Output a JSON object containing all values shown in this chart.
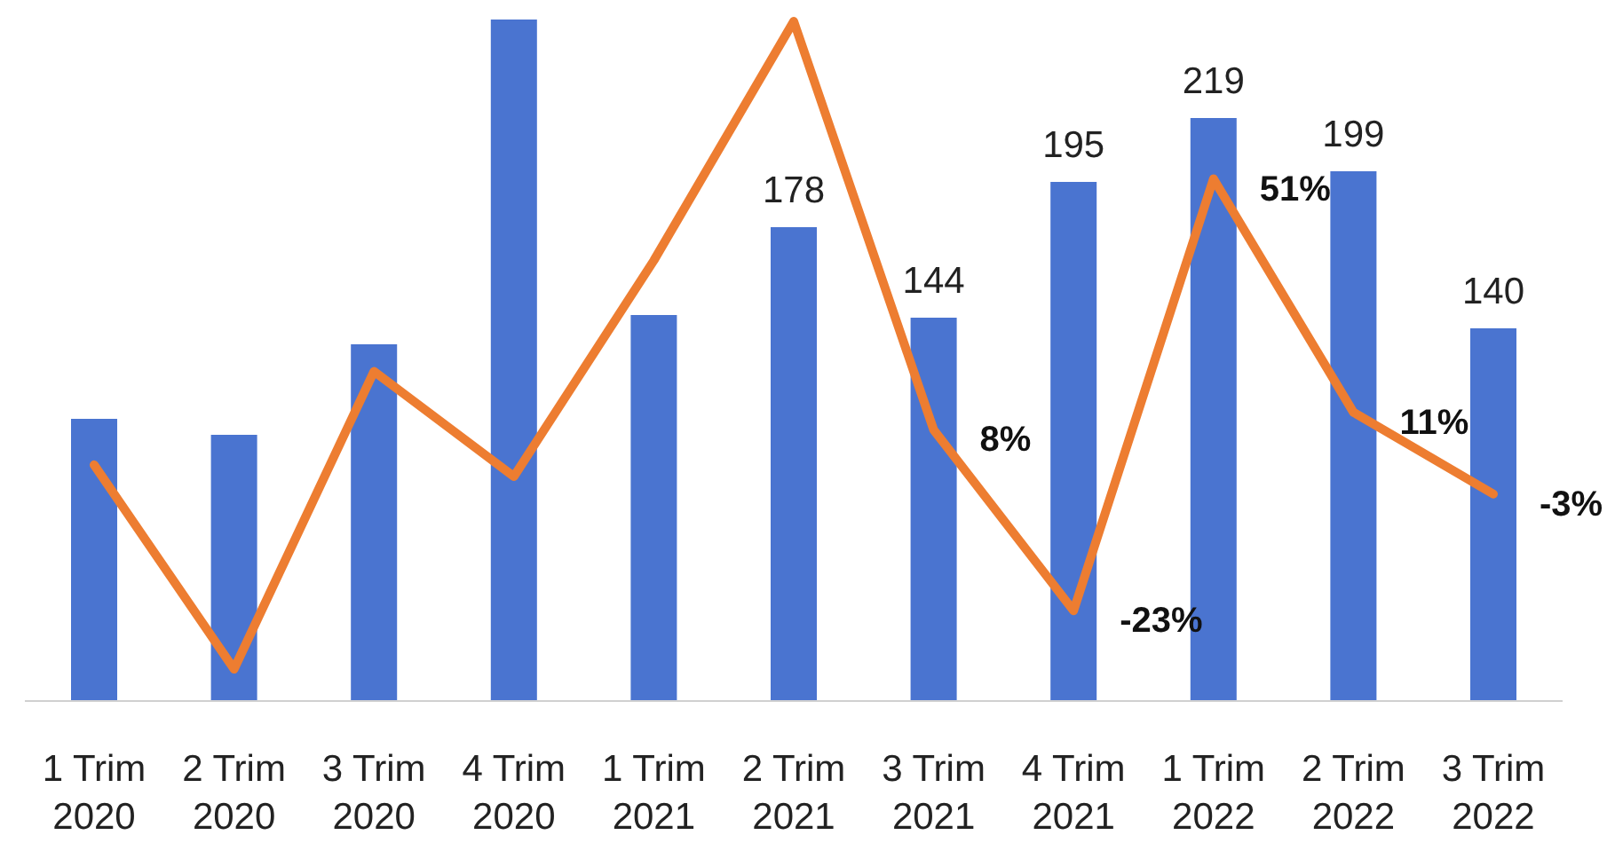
{
  "chart_data": {
    "type": "bar",
    "categories": [
      "1 Trim 2020",
      "2 Trim 2020",
      "3 Trim 2020",
      "4 Trim 2020",
      "1 Trim 2021",
      "2 Trim 2021",
      "3 Trim 2021",
      "4 Trim 2021",
      "1 Trim 2022",
      "2 Trim 2022",
      "3 Trim 2022"
    ],
    "series": [
      {
        "color": "#4a74d0",
        "values": [
          106,
          100,
          134,
          256,
          145,
          178,
          144,
          195,
          219,
          199,
          140
        ],
        "value_labels": [
          null,
          null,
          null,
          null,
          null,
          "178",
          "144",
          "195",
          "219",
          "199",
          "140"
        ]
      },
      {
        "type": "line",
        "axis": "y2",
        "color": "#ed7d31",
        "values": [
          2,
          -33,
          18,
          0,
          37,
          78,
          8,
          -23,
          51,
          11,
          -3
        ],
        "value_labels": [
          null,
          null,
          null,
          null,
          null,
          null,
          "8%",
          "-23%",
          "51%",
          "11%",
          "-3%"
        ]
      }
    ],
    "tick_labels": "x",
    "grid": false,
    "marker": "none",
    "line_style": "solid"
  }
}
